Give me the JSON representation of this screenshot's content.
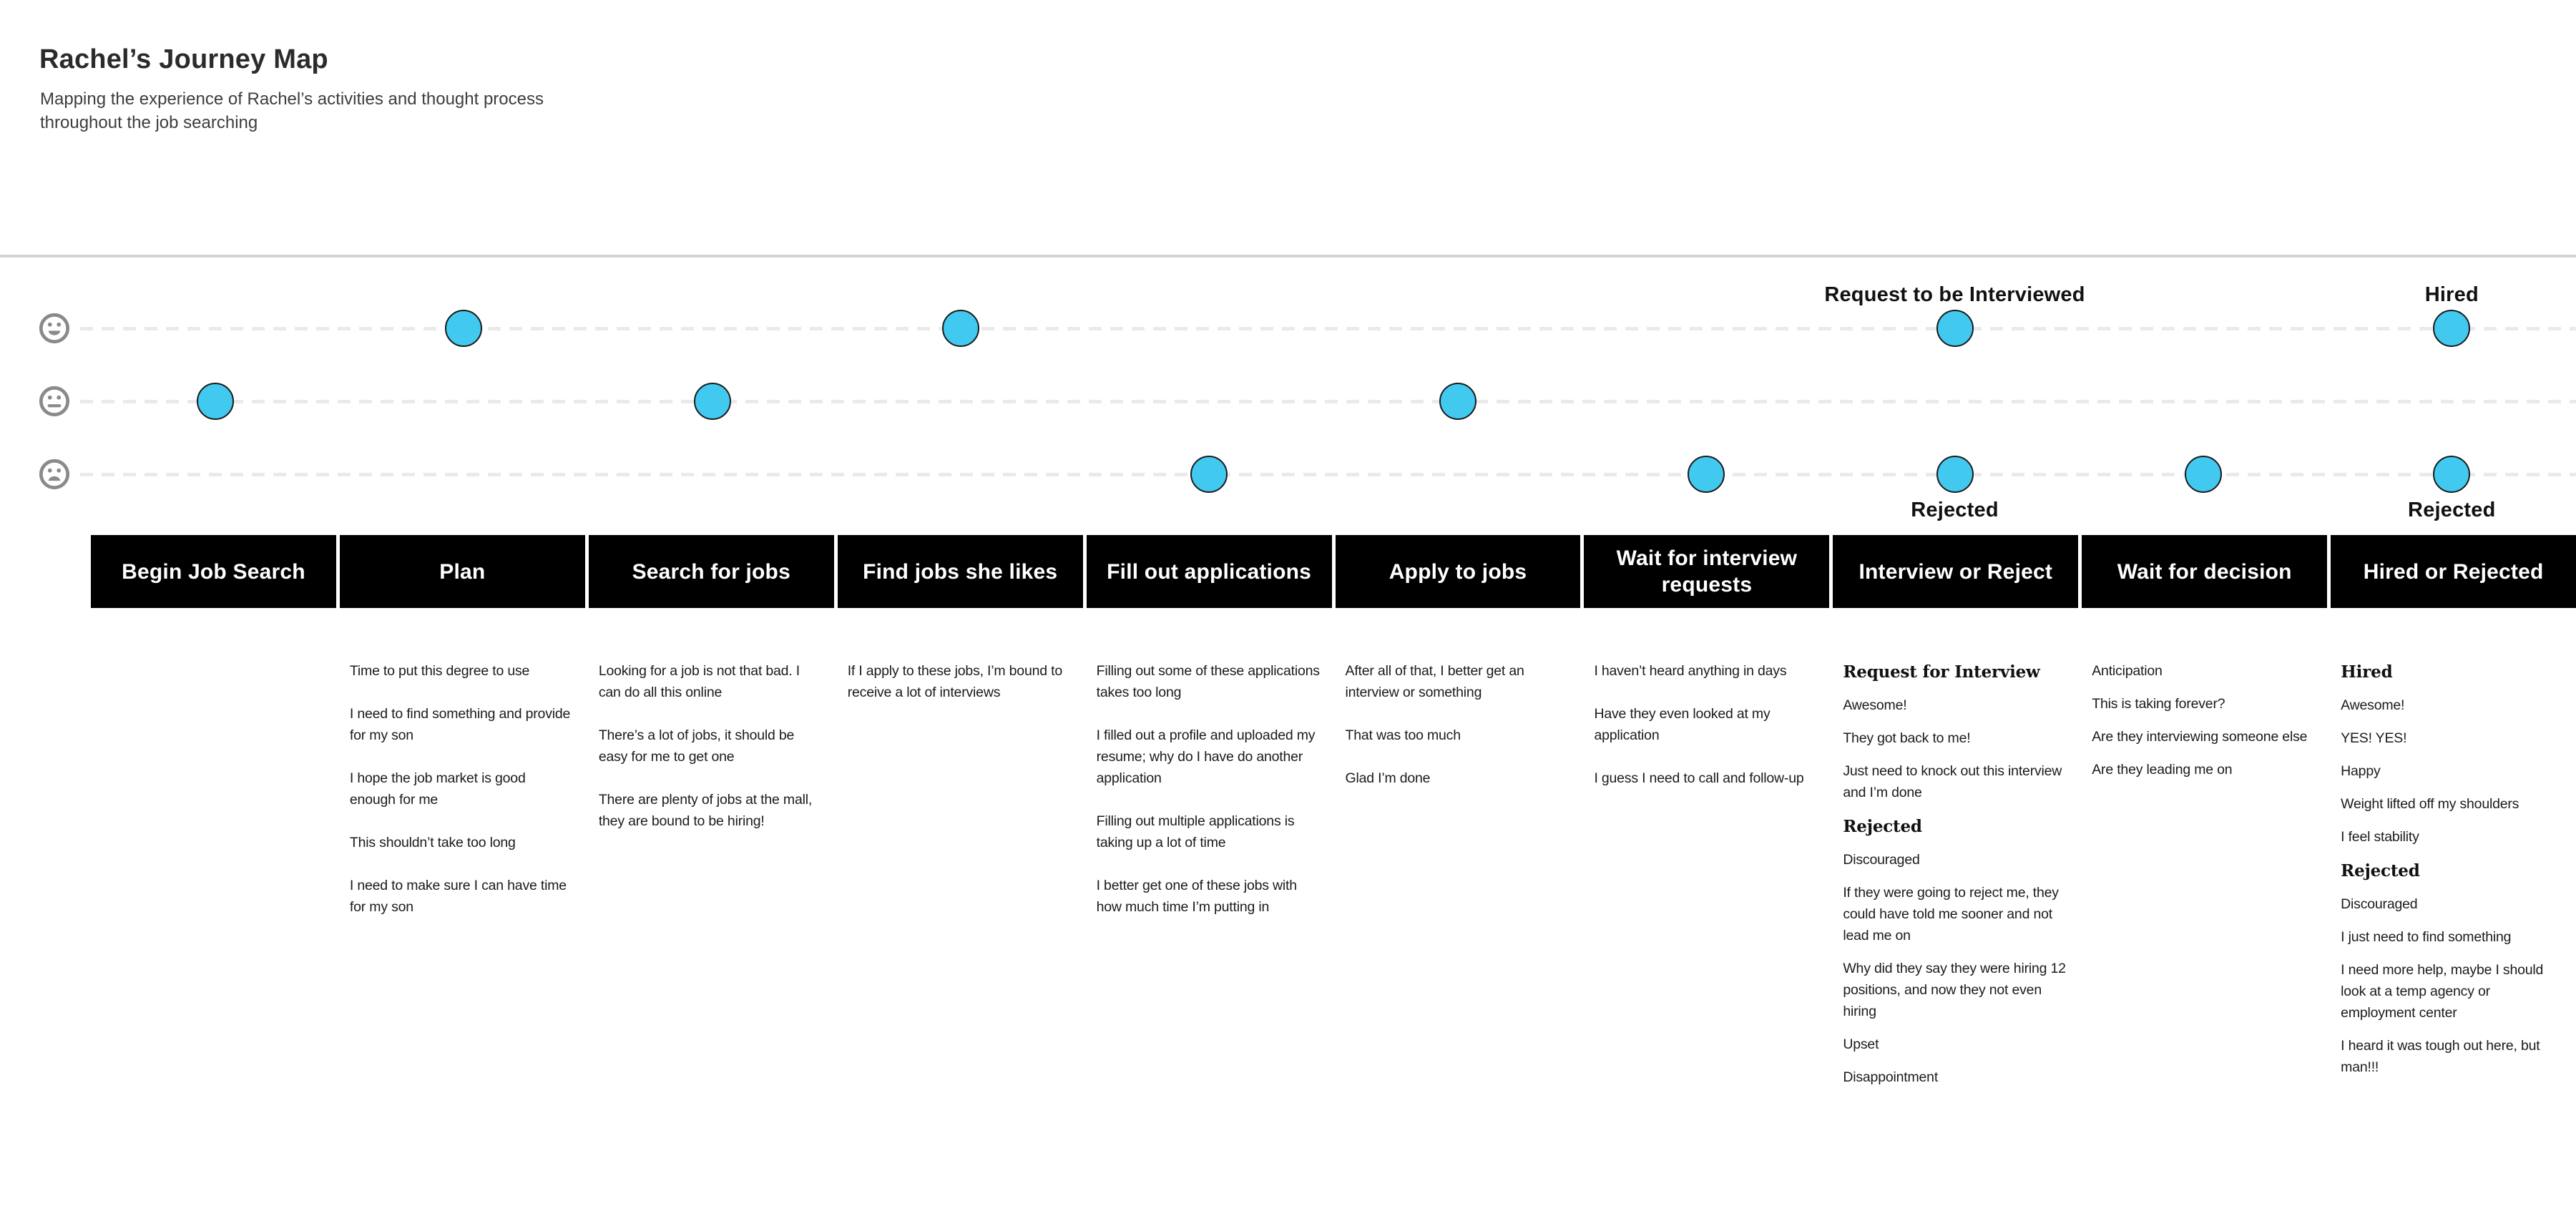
{
  "header": {
    "title": "Rachel’s Journey Map",
    "subtitle": "Mapping the experience of Rachel’s activities and thought process throughout the job searching"
  },
  "colors": {
    "dot_fill": "#41c9f0",
    "dot_stroke": "#1a1a1a",
    "bar_background": "#000000",
    "bar_text": "#ffffff",
    "dash_line": "#eaeaea",
    "face_gray": "#8a8a8a"
  },
  "emotion_levels": [
    {
      "id": "happy",
      "icon": "happy-face-icon"
    },
    {
      "id": "neutral",
      "icon": "neutral-face-icon"
    },
    {
      "id": "sad",
      "icon": "sad-face-icon"
    }
  ],
  "stages": [
    {
      "label": "Begin Job Search",
      "dots": [
        {
          "level": "neutral"
        }
      ],
      "thoughts": []
    },
    {
      "label": "Plan",
      "dots": [
        {
          "level": "happy"
        }
      ],
      "thoughts": [
        {
          "type": "p",
          "text": "Time to put this degree to use"
        },
        {
          "type": "p",
          "text": "I need to find something and provide for my son"
        },
        {
          "type": "p",
          "text": "I hope the job market is good enough for me"
        },
        {
          "type": "p",
          "text": "This shouldn’t take too long"
        },
        {
          "type": "p",
          "text": "I need to make sure I can have time for my son"
        }
      ]
    },
    {
      "label": "Search for jobs",
      "dots": [
        {
          "level": "neutral"
        }
      ],
      "thoughts": [
        {
          "type": "p",
          "text": "Looking for a job is not that bad.  I can do all this online"
        },
        {
          "type": "p",
          "text": "There’s a lot of jobs, it should be easy for me to get one"
        },
        {
          "type": "p",
          "text": "There are plenty of jobs at the mall, they are bound to be hiring!"
        }
      ]
    },
    {
      "label": "Find jobs she likes",
      "dots": [
        {
          "level": "happy"
        }
      ],
      "thoughts": [
        {
          "type": "p",
          "text": "If I apply to these jobs, I’m bound to receive a lot of interviews"
        }
      ]
    },
    {
      "label": "Fill out applications",
      "dots": [
        {
          "level": "sad"
        }
      ],
      "thoughts": [
        {
          "type": "p",
          "text": "Filling out some of these applications takes too long"
        },
        {
          "type": "p",
          "text": "I filled out a profile and uploaded my resume; why do I have do another application"
        },
        {
          "type": "p",
          "text": "Filling out multiple applications is taking up a lot of time"
        },
        {
          "type": "p",
          "text": "I better get one of these jobs with how much time I’m putting in"
        }
      ]
    },
    {
      "label": "Apply to jobs",
      "dots": [
        {
          "level": "neutral"
        }
      ],
      "thoughts": [
        {
          "type": "p",
          "text": "After all of that, I better get an interview or something"
        },
        {
          "type": "p",
          "text": "That was too much"
        },
        {
          "type": "p",
          "text": "Glad I’m done"
        }
      ]
    },
    {
      "label": "Wait for interview requests",
      "dots": [
        {
          "level": "sad"
        }
      ],
      "thoughts": [
        {
          "type": "p",
          "text": "I haven’t heard anything in days"
        },
        {
          "type": "p",
          "text": "Have they even looked at my application"
        },
        {
          "type": "p",
          "text": "I guess I need to call and follow-up"
        }
      ]
    },
    {
      "label": "Interview or Reject",
      "dots": [
        {
          "level": "happy",
          "label_above": "Request to be Interviewed"
        },
        {
          "level": "sad",
          "label_below": "Rejected"
        }
      ],
      "thoughts": [
        {
          "type": "heading",
          "text": "Request for Interview"
        },
        {
          "type": "p",
          "text": "Awesome!"
        },
        {
          "type": "p",
          "text": "They got back to me!"
        },
        {
          "type": "p",
          "text": "Just need to knock out this interview and I’m done"
        },
        {
          "type": "heading",
          "text": "Rejected"
        },
        {
          "type": "p",
          "text": "Discouraged"
        },
        {
          "type": "p",
          "text": "If they were going to reject me, they could have told me sooner and not lead me on"
        },
        {
          "type": "p",
          "text": "Why did they say they were hiring 12 positions, and now they not even hiring"
        },
        {
          "type": "p",
          "text": "Upset"
        },
        {
          "type": "p",
          "text": "Disappointment"
        }
      ]
    },
    {
      "label": "Wait for decision",
      "dots": [
        {
          "level": "sad"
        }
      ],
      "thoughts": [
        {
          "type": "p",
          "text": "Anticipation"
        },
        {
          "type": "p",
          "text": "This is taking forever?"
        },
        {
          "type": "p",
          "text": "Are they interviewing someone else"
        },
        {
          "type": "p",
          "text": "Are they leading me on"
        }
      ]
    },
    {
      "label": "Hired or Rejected",
      "dots": [
        {
          "level": "happy",
          "label_above": "Hired"
        },
        {
          "level": "sad",
          "label_below": "Rejected"
        }
      ],
      "thoughts": [
        {
          "type": "heading",
          "text": "Hired"
        },
        {
          "type": "p",
          "text": "Awesome!"
        },
        {
          "type": "p",
          "text": "YES! YES!"
        },
        {
          "type": "p",
          "text": "Happy"
        },
        {
          "type": "p",
          "text": "Weight lifted off my shoulders"
        },
        {
          "type": "p",
          "text": "I feel stability"
        },
        {
          "type": "heading",
          "text": "Rejected"
        },
        {
          "type": "p",
          "text": "Discouraged"
        },
        {
          "type": "p",
          "text": "I just need to find something"
        },
        {
          "type": "p",
          "text": "I need more help, maybe I should look at a temp agency or employment center"
        },
        {
          "type": "p",
          "text": "I heard it was tough out here, but man!!!"
        }
      ]
    }
  ]
}
